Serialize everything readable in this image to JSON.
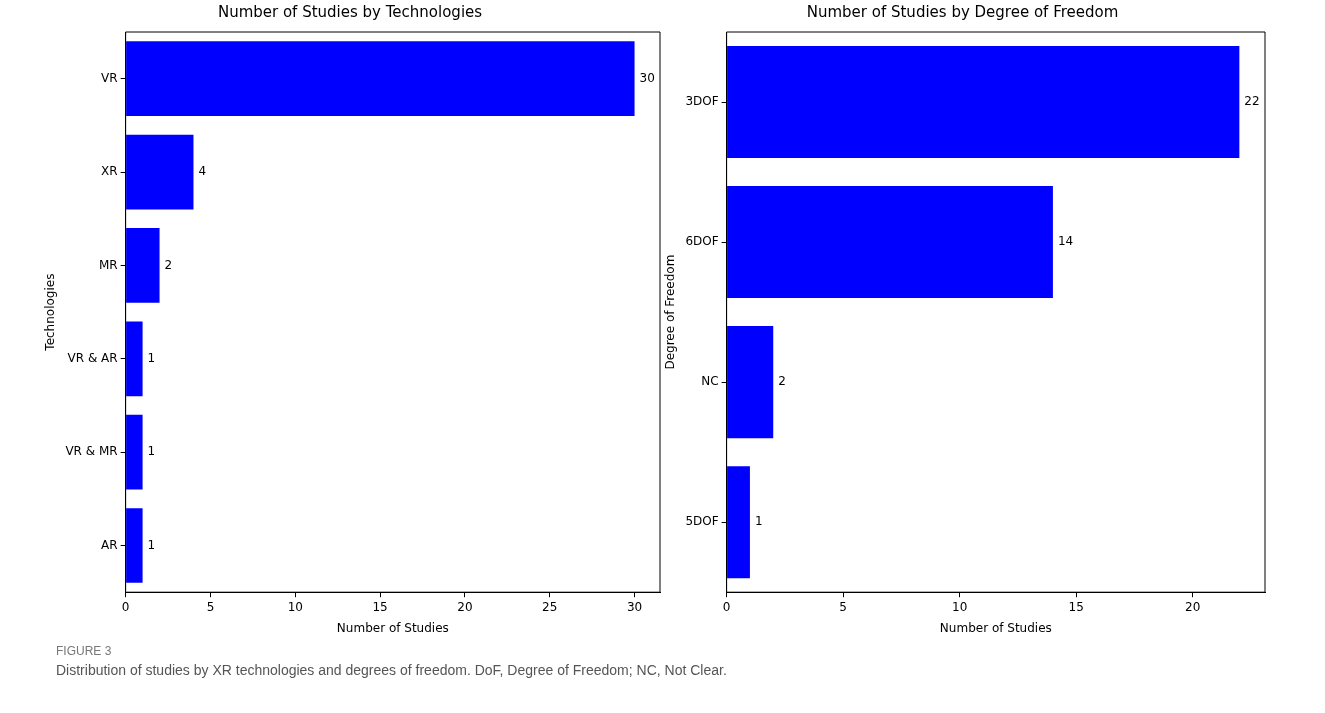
{
  "chart_data": [
    {
      "type": "bar",
      "orientation": "horizontal",
      "title": "Number of Studies by Technologies",
      "xlabel": "Number of Studies",
      "ylabel": "Technologies",
      "categories": [
        "VR",
        "XR",
        "MR",
        "VR & AR",
        "VR & MR",
        "AR"
      ],
      "values": [
        30,
        4,
        2,
        1,
        1,
        1
      ],
      "color": "#0000ff",
      "xlim": [
        0,
        31.5
      ],
      "xticks": [
        0,
        5,
        10,
        15,
        20,
        25,
        30
      ],
      "grid": false,
      "data_labels": true,
      "annotations": [
        "FIGURE 3",
        "Distribution of studies by XR technologies and degrees of freedom. DoF, Degree of Freedom; NC, Not Clear."
      ]
    },
    {
      "type": "bar",
      "orientation": "horizontal",
      "title": "Number of Studies by Degree of Freedom",
      "xlabel": "Number of Studies",
      "ylabel": "Degree of Freedom",
      "categories": [
        "3DOF",
        "6DOF",
        "NC",
        "5DOF"
      ],
      "values": [
        22,
        14,
        2,
        1
      ],
      "color": "#0000ff",
      "xlim": [
        0,
        23.1
      ],
      "xticks": [
        0,
        5,
        10,
        15,
        20
      ],
      "grid": false,
      "data_labels": true
    }
  ]
}
